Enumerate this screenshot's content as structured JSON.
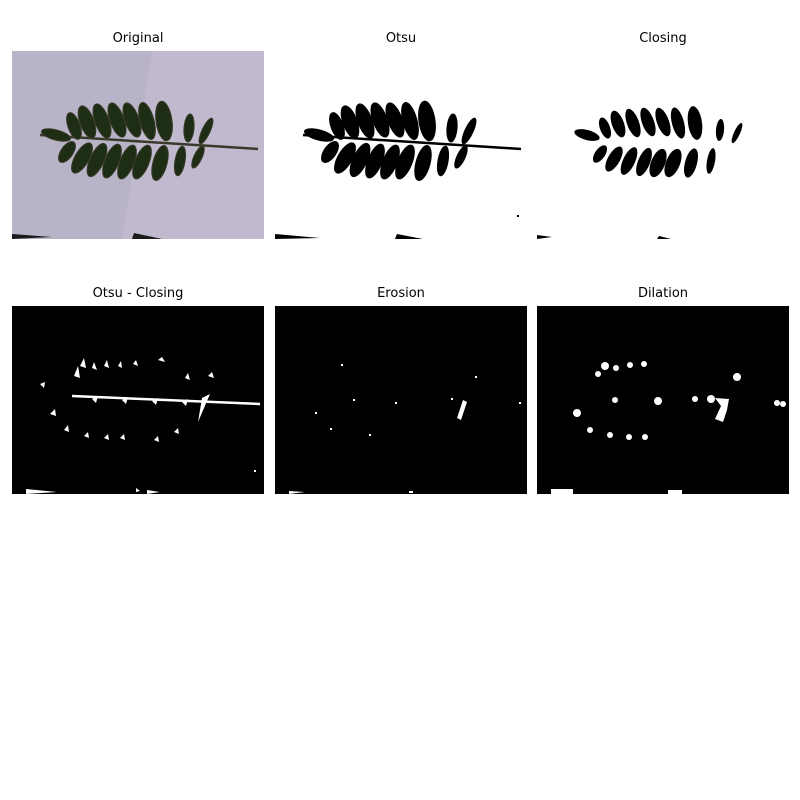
{
  "panels": [
    {
      "title": "Original"
    },
    {
      "title": "Otsu"
    },
    {
      "title": "Closing"
    },
    {
      "title": "Otsu - Closing"
    },
    {
      "title": "Erosion"
    },
    {
      "title": "Dilation"
    }
  ],
  "colors": {
    "background_paper": "#b9b3c8",
    "leaf": "#1d2e14",
    "mask_black": "#000000",
    "mask_white": "#ffffff"
  }
}
